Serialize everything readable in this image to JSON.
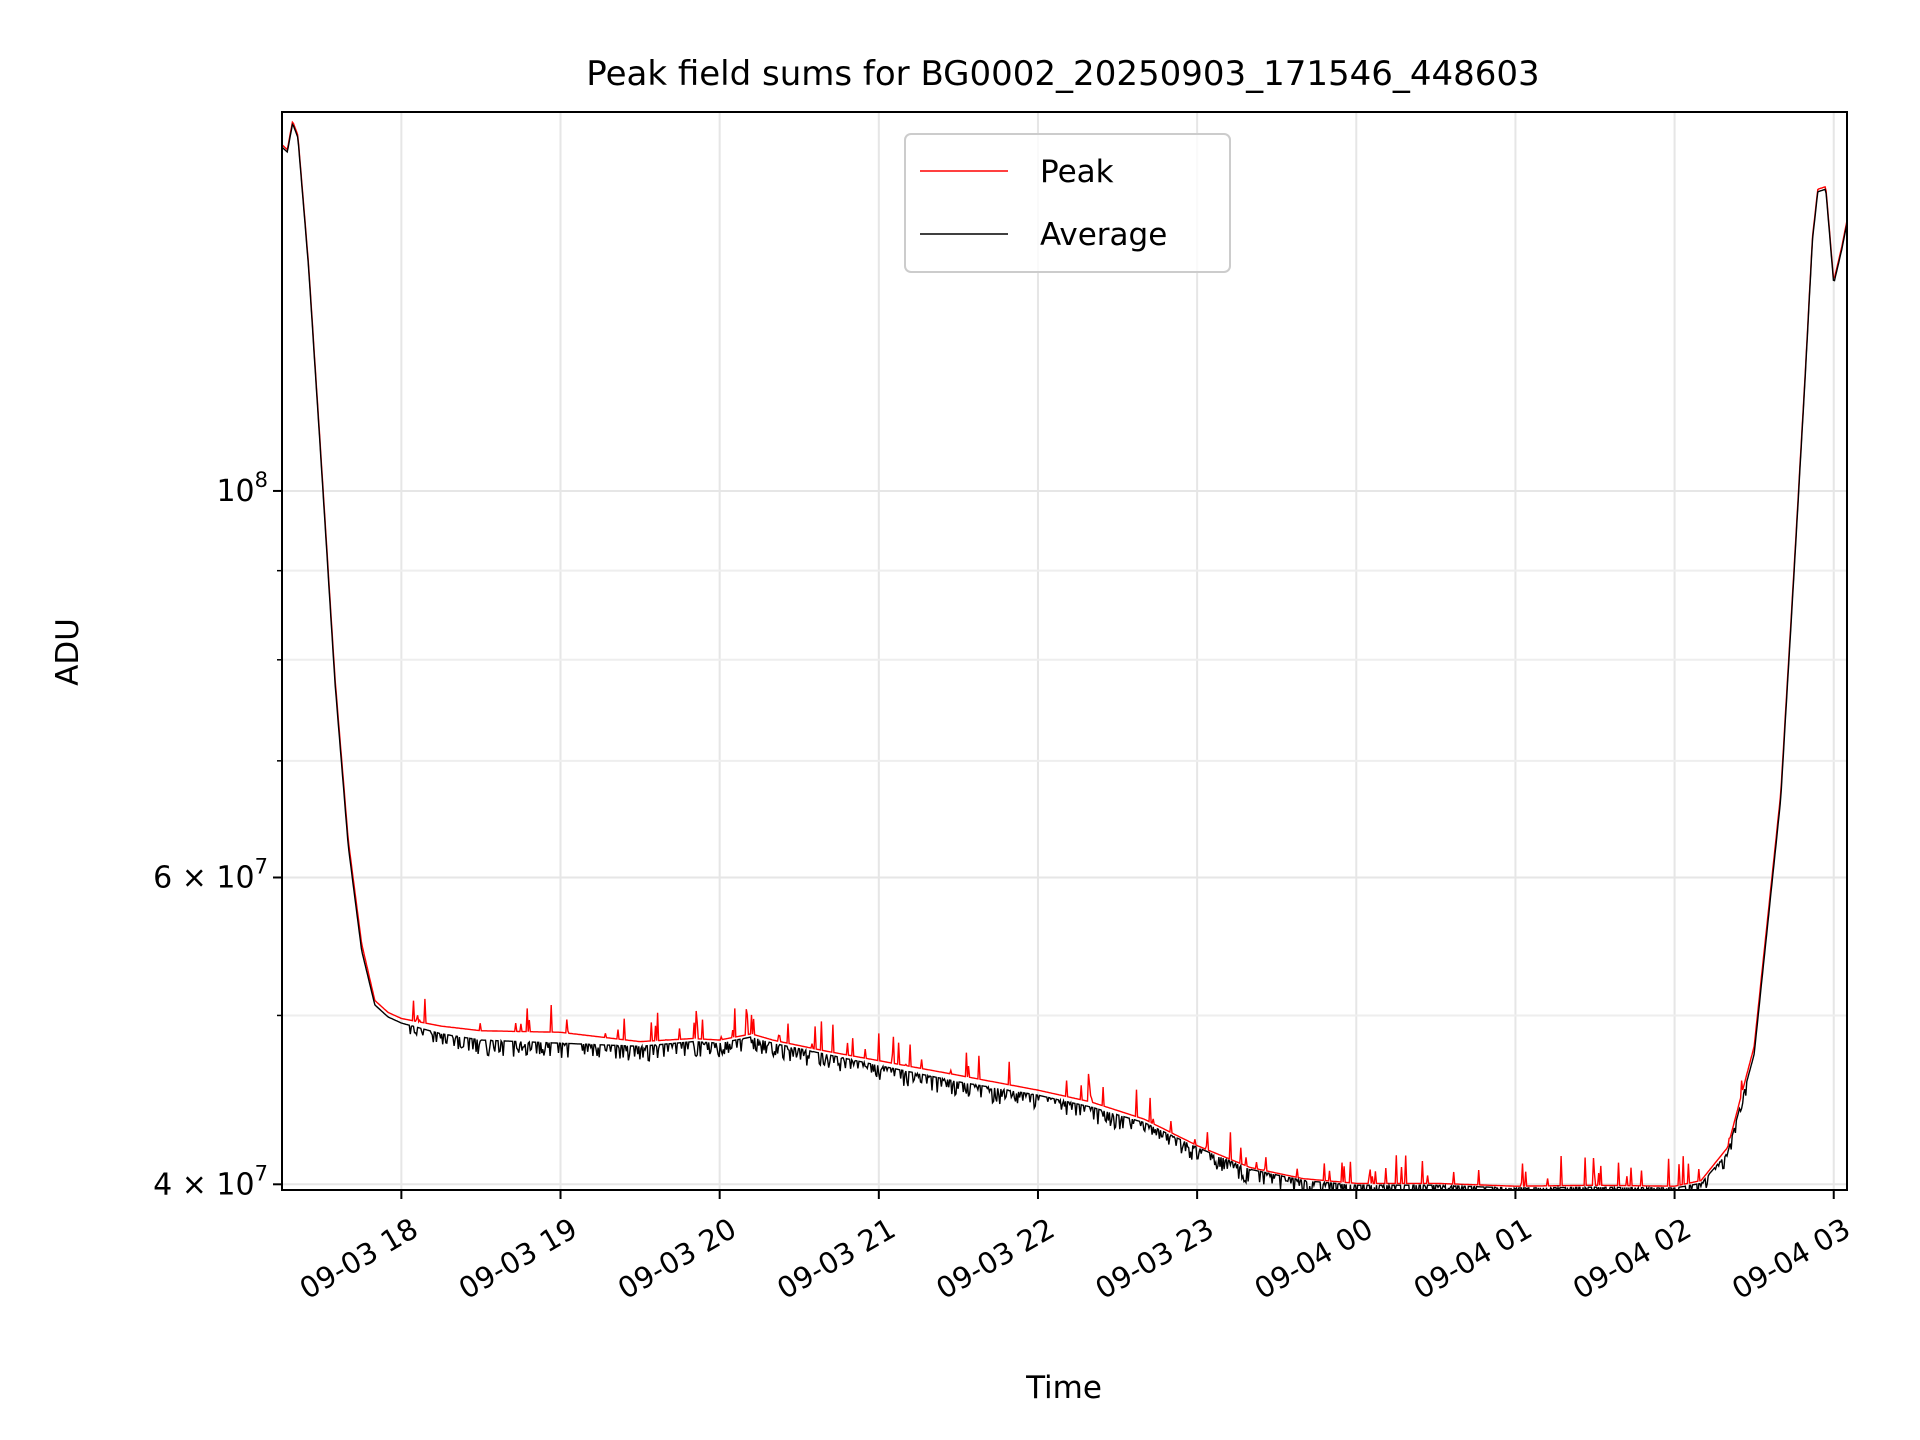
{
  "chart_data": {
    "type": "line",
    "title": "Peak field sums for BG0002_20250903_171546_448603",
    "xlabel": "Time",
    "ylabel": "ADU",
    "y_scale": "log",
    "x_ticks": [
      "09-03 18",
      "09-03 19",
      "09-03 20",
      "09-03 21",
      "09-03 22",
      "09-03 23",
      "09-04 00",
      "09-04 01",
      "09-04 02",
      "09-04 03"
    ],
    "y_ticks": [
      {
        "value": 40000000,
        "base": "4",
        "mant": "10",
        "exp": "7",
        "style": "sci"
      },
      {
        "value": 60000000,
        "base": "6",
        "mant": "10",
        "exp": "7",
        "style": "sci"
      },
      {
        "value": 100000000,
        "mant": "10",
        "exp": "8",
        "style": "pow"
      }
    ],
    "y_minor_ticks": [
      50000000,
      70000000,
      80000000,
      90000000
    ],
    "xlim": [
      "2025-09-03 17:15",
      "2025-09-04 03:05"
    ],
    "ylim": [
      39700000,
      165000000
    ],
    "grid": true,
    "legend": "upper center",
    "series": [
      {
        "name": "Peak",
        "color": "#ff0000",
        "x": [
          "2025-09-03 17:15",
          "2025-09-03 17:17",
          "2025-09-03 17:19",
          "2025-09-03 17:21",
          "2025-09-03 17:25",
          "2025-09-03 17:30",
          "2025-09-03 17:35",
          "2025-09-03 17:40",
          "2025-09-03 17:45",
          "2025-09-03 17:50",
          "2025-09-03 17:55",
          "2025-09-03 18:00",
          "2025-09-03 18:15",
          "2025-09-03 18:30",
          "2025-09-03 19:00",
          "2025-09-03 19:30",
          "2025-09-03 19:50",
          "2025-09-03 20:00",
          "2025-09-03 20:12",
          "2025-09-03 20:20",
          "2025-09-03 20:40",
          "2025-09-03 21:00",
          "2025-09-03 21:30",
          "2025-09-03 22:00",
          "2025-09-03 22:20",
          "2025-09-03 22:40",
          "2025-09-03 23:00",
          "2025-09-03 23:20",
          "2025-09-03 23:40",
          "2025-09-04 00:00",
          "2025-09-04 00:30",
          "2025-09-04 01:00",
          "2025-09-04 01:30",
          "2025-09-04 02:00",
          "2025-09-04 02:10",
          "2025-09-04 02:20",
          "2025-09-04 02:30",
          "2025-09-04 02:40",
          "2025-09-04 02:45",
          "2025-09-04 02:49",
          "2025-09-04 02:52",
          "2025-09-04 02:54",
          "2025-09-04 02:57",
          "2025-09-04 03:00",
          "2025-09-04 03:03",
          "2025-09-04 03:05"
        ],
        "y": [
          158000000,
          157000000,
          163000000,
          160000000,
          135000000,
          103000000,
          78000000,
          63000000,
          55000000,
          51000000,
          50200000,
          49800000,
          49300000,
          49000000,
          48900000,
          48300000,
          48500000,
          48400000,
          48800000,
          48400000,
          47700000,
          47100000,
          46200000,
          45300000,
          44600000,
          43600000,
          42100000,
          40900000,
          40300000,
          40050000,
          40050000,
          39900000,
          39950000,
          39900000,
          40200000,
          42000000,
          48000000,
          67000000,
          90000000,
          115000000,
          140000000,
          149000000,
          149500000,
          132000000,
          138000000,
          143000000
        ]
      },
      {
        "name": "Average",
        "color": "#000000",
        "x": [
          "2025-09-03 17:15",
          "2025-09-03 17:17",
          "2025-09-03 17:19",
          "2025-09-03 17:21",
          "2025-09-03 17:25",
          "2025-09-03 17:30",
          "2025-09-03 17:35",
          "2025-09-03 17:40",
          "2025-09-03 17:45",
          "2025-09-03 17:50",
          "2025-09-03 17:55",
          "2025-09-03 18:00",
          "2025-09-03 18:15",
          "2025-09-03 18:30",
          "2025-09-03 19:00",
          "2025-09-03 19:30",
          "2025-09-03 19:50",
          "2025-09-03 20:00",
          "2025-09-03 20:12",
          "2025-09-03 20:20",
          "2025-09-03 20:40",
          "2025-09-03 21:00",
          "2025-09-03 21:30",
          "2025-09-03 22:00",
          "2025-09-03 22:20",
          "2025-09-03 22:40",
          "2025-09-03 23:00",
          "2025-09-03 23:20",
          "2025-09-03 23:40",
          "2025-09-04 00:00",
          "2025-09-04 00:30",
          "2025-09-04 01:00",
          "2025-09-04 01:30",
          "2025-09-04 02:00",
          "2025-09-04 02:10",
          "2025-09-04 02:20",
          "2025-09-04 02:30",
          "2025-09-04 02:40",
          "2025-09-04 02:45",
          "2025-09-04 02:49",
          "2025-09-04 02:52",
          "2025-09-04 02:54",
          "2025-09-04 02:57",
          "2025-09-04 03:00",
          "2025-09-04 03:03",
          "2025-09-04 03:05"
        ],
        "y": [
          157500000,
          156500000,
          162500000,
          159500000,
          134500000,
          102500000,
          77500000,
          62500000,
          54500000,
          50700000,
          49900000,
          49500000,
          48800000,
          48400000,
          48200000,
          48000000,
          48300000,
          48200000,
          48600000,
          48200000,
          47500000,
          46800000,
          45800000,
          45000000,
          44300000,
          43400000,
          42000000,
          40800000,
          40200000,
          39950000,
          39950000,
          39800000,
          39850000,
          39800000,
          40050000,
          41700000,
          47500000,
          66500000,
          89500000,
          114500000,
          139500000,
          148500000,
          149000000,
          131500000,
          137500000,
          142500000
        ]
      }
    ]
  }
}
